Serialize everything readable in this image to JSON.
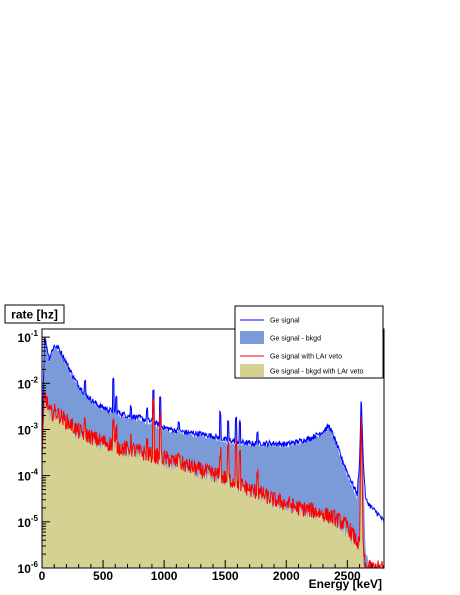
{
  "chart_data": {
    "type": "area",
    "ylabel": "rate [hz]",
    "xlabel": "Energy [keV]",
    "xlim": [
      0,
      2800
    ],
    "ylim": [
      1e-06,
      0.15
    ],
    "yscale": "log",
    "legend_position": "top-right",
    "x_ticks": [
      "0",
      "500",
      "1000",
      "1500",
      "2000",
      "2500"
    ],
    "x_tick_values": [
      0,
      500,
      1000,
      1500,
      2000,
      2500
    ],
    "y_ticks": [
      {
        "base": "10",
        "exp": "-1",
        "value": 0.1
      },
      {
        "base": "10",
        "exp": "-2",
        "value": 0.01
      },
      {
        "base": "10",
        "exp": "-3",
        "value": 0.001
      },
      {
        "base": "10",
        "exp": "-4",
        "value": 0.0001
      },
      {
        "base": "10",
        "exp": "-5",
        "value": 1e-05
      },
      {
        "base": "10",
        "exp": "-6",
        "value": 1e-06
      }
    ],
    "series": [
      {
        "name": "Ge signal",
        "style": "line",
        "color": "#0000ff",
        "x": [
          0,
          20,
          40,
          60,
          80,
          100,
          130,
          160,
          200,
          250,
          300,
          350,
          400,
          450,
          500,
          550,
          600,
          650,
          700,
          750,
          800,
          850,
          900,
          950,
          1000,
          1100,
          1200,
          1300,
          1400,
          1500,
          1600,
          1700,
          1800,
          1900,
          2000,
          2100,
          2200,
          2300,
          2350,
          2400,
          2450,
          2500,
          2550,
          2580,
          2600,
          2614,
          2630,
          2650,
          2700,
          2750,
          2800
        ],
        "y": [
          0.0005,
          0.1,
          0.06,
          0.035,
          0.05,
          0.065,
          0.06,
          0.045,
          0.028,
          0.015,
          0.009,
          0.006,
          0.0045,
          0.0035,
          0.003,
          0.0026,
          0.0025,
          0.0022,
          0.002,
          0.0019,
          0.0018,
          0.0016,
          0.0015,
          0.0013,
          0.0011,
          0.00095,
          0.00085,
          0.0008,
          0.00072,
          0.0006,
          0.00055,
          0.0005,
          0.0005,
          0.0005,
          0.00048,
          0.00055,
          0.00065,
          0.0009,
          0.0012,
          0.0006,
          0.00025,
          0.00012,
          6e-05,
          4e-05,
          0.0002,
          0.006,
          0.0002,
          3e-05,
          2e-05,
          1.5e-05,
          1e-05
        ]
      },
      {
        "name": "Ge signal - bkgd",
        "style": "fill",
        "color": "#7a9ad8",
        "x": [
          0,
          20,
          40,
          60,
          80,
          100,
          130,
          160,
          200,
          250,
          300,
          350,
          400,
          450,
          500,
          550,
          600,
          650,
          700,
          750,
          800,
          850,
          900,
          950,
          1000,
          1100,
          1200,
          1300,
          1400,
          1500,
          1600,
          1700,
          1800,
          1900,
          2000,
          2100,
          2200,
          2300,
          2350,
          2400,
          2450,
          2500,
          2550,
          2580,
          2600,
          2614,
          2630,
          2650,
          2700,
          2750,
          2800
        ],
        "y": [
          0.0005,
          0.08,
          0.05,
          0.03,
          0.045,
          0.06,
          0.055,
          0.04,
          0.025,
          0.014,
          0.0085,
          0.0055,
          0.0042,
          0.0033,
          0.0028,
          0.0024,
          0.0023,
          0.002,
          0.0018,
          0.0017,
          0.0016,
          0.0014,
          0.0013,
          0.0011,
          0.001,
          0.00088,
          0.00078,
          0.00072,
          0.00065,
          0.00055,
          0.0005,
          0.00046,
          0.00046,
          0.00046,
          0.00044,
          0.0005,
          0.0006,
          0.00082,
          0.0011,
          0.00055,
          0.00022,
          0.0001,
          5e-05,
          3e-05,
          0.00015,
          0.005,
          0.00015,
          2e-06,
          1e-06,
          1e-06,
          1e-06
        ]
      },
      {
        "name": "Ge signal with LAr veto",
        "style": "line",
        "color": "#ff0000",
        "x": [
          0,
          20,
          40,
          60,
          80,
          100,
          150,
          200,
          250,
          300,
          350,
          400,
          450,
          500,
          550,
          600,
          650,
          700,
          750,
          800,
          850,
          900,
          950,
          1000,
          1100,
          1200,
          1300,
          1400,
          1500,
          1600,
          1700,
          1800,
          1900,
          2000,
          2100,
          2200,
          2300,
          2400,
          2450,
          2500,
          2550,
          2600,
          2614,
          2630,
          2650,
          2700,
          2750,
          2800
        ],
        "y": [
          0.0002,
          0.006,
          0.004,
          0.0025,
          0.0022,
          0.0025,
          0.002,
          0.0015,
          0.0012,
          0.0009,
          0.0008,
          0.0007,
          0.0006,
          0.00055,
          0.0005,
          0.00045,
          0.0004,
          0.00038,
          0.00036,
          0.00033,
          0.0003,
          0.00028,
          0.00026,
          0.00024,
          0.0002,
          0.00016,
          0.00013,
          0.00011,
          9e-05,
          7e-05,
          5e-05,
          4e-05,
          3e-05,
          2.5e-05,
          2e-05,
          1.8e-05,
          1.5e-05,
          1.2e-05,
          1e-05,
          8e-06,
          5e-06,
          3e-06,
          0.003,
          2e-06,
          1e-06,
          1e-06,
          1e-06,
          1e-06
        ]
      },
      {
        "name": "Ge signal - bkgd with LAr veto",
        "style": "fill",
        "color": "#d4d192",
        "x": [
          0,
          20,
          40,
          60,
          80,
          100,
          150,
          200,
          250,
          300,
          350,
          400,
          450,
          500,
          550,
          600,
          650,
          700,
          750,
          800,
          850,
          900,
          950,
          1000,
          1100,
          1200,
          1300,
          1400,
          1500,
          1600,
          1700,
          1800,
          1900,
          2000,
          2100,
          2200,
          2300,
          2400,
          2450,
          2500,
          2550,
          2600,
          2614,
          2630,
          2650,
          2700,
          2750,
          2800
        ],
        "y": [
          0.0002,
          0.005,
          0.0035,
          0.0022,
          0.002,
          0.0022,
          0.0018,
          0.0013,
          0.001,
          0.0008,
          0.0007,
          0.0006,
          0.00052,
          0.00048,
          0.00043,
          0.0004,
          0.00035,
          0.00033,
          0.00031,
          0.00028,
          0.00026,
          0.00024,
          0.00022,
          0.0002,
          0.00017,
          0.00014,
          0.00011,
          9.5e-05,
          8e-05,
          6e-05,
          4.5e-05,
          3.5e-05,
          2.7e-05,
          2.2e-05,
          1.8e-05,
          1.6e-05,
          1.3e-05,
          1e-05,
          8e-06,
          6e-06,
          4e-06,
          2.5e-06,
          0.0025,
          1e-06,
          1e-06,
          1e-06,
          1e-06,
          1e-06
        ]
      }
    ],
    "peaks": [
      {
        "x": 352,
        "factor_blue": 1.8,
        "factor_red": 1.6
      },
      {
        "x": 583,
        "factor_blue": 4.5,
        "factor_red": 3.0
      },
      {
        "x": 609,
        "factor_blue": 2.0,
        "factor_red": 2.0
      },
      {
        "x": 727,
        "factor_blue": 1.6,
        "factor_red": 1.5
      },
      {
        "x": 860,
        "factor_blue": 1.8,
        "factor_red": 1.7
      },
      {
        "x": 911,
        "factor_blue": 5.0,
        "factor_red": 12.0
      },
      {
        "x": 969,
        "factor_blue": 4.0,
        "factor_red": 8.0
      },
      {
        "x": 1120,
        "factor_blue": 1.6,
        "factor_red": 1.8
      },
      {
        "x": 1461,
        "factor_blue": 3.5,
        "factor_red": 3.5
      },
      {
        "x": 1525,
        "factor_blue": 2.5,
        "factor_red": 5.0
      },
      {
        "x": 1588,
        "factor_blue": 3.0,
        "factor_red": 8.0
      },
      {
        "x": 1620,
        "factor_blue": 2.5,
        "factor_red": 4.0
      },
      {
        "x": 1764,
        "factor_blue": 1.8,
        "factor_red": 3.0
      }
    ]
  }
}
